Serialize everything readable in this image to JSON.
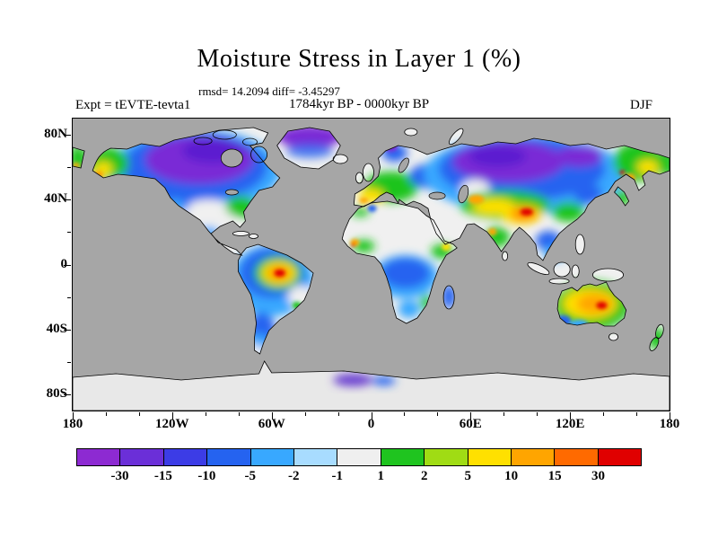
{
  "header": {
    "title": "Moisture Stress in Layer 1 (%)",
    "stats_line": "rmsd= 14.2094 diff= -3.45297",
    "period_line": "1784kyr BP - 0000kyr BP",
    "experiment_label": "Expt = tEVTE-tevta1",
    "season_label": "DJF"
  },
  "chart_data": {
    "type": "heatmap",
    "title": "Moisture Stress in Layer 1 (%)",
    "subtitle": "1784kyr BP - 0000kyr BP",
    "experiment": "tEVTE-tevta1",
    "season": "DJF",
    "units": "%",
    "stats": {
      "rmsd": 14.2094,
      "diff": -3.45297
    },
    "projection": "equirectangular world map",
    "x_axis": {
      "labels": [
        "180",
        "120W",
        "60W",
        "0",
        "60E",
        "120E",
        "180"
      ],
      "positions_deg": [
        -180,
        -120,
        -60,
        0,
        60,
        120,
        180
      ],
      "minor_tick_step_deg": 20,
      "range_deg": [
        -180,
        180
      ]
    },
    "y_axis": {
      "labels": [
        "80N",
        "40N",
        "0",
        "40S",
        "80S"
      ],
      "positions_deg": [
        80,
        40,
        0,
        -40,
        -80
      ],
      "minor_tick_step_deg": 20,
      "range_deg": [
        -90,
        90
      ]
    },
    "colorbar": {
      "labels": [
        "-30",
        "-15",
        "-10",
        "-5",
        "-2",
        "-1",
        "1",
        "2",
        "5",
        "10",
        "15",
        "30"
      ],
      "levels": [
        -30,
        -15,
        -10,
        -5,
        -2,
        -1,
        1,
        2,
        5,
        10,
        15,
        30
      ],
      "colors": [
        "#8d2ad2",
        "#6b2fd8",
        "#3c3ce6",
        "#2563f0",
        "#38a8ff",
        "#a8dcff",
        "#efefef",
        "#1fc41f",
        "#a0dc14",
        "#ffe000",
        "#ffa500",
        "#ff6a00",
        "#e00000"
      ],
      "units": "%"
    },
    "map_colors": {
      "ocean": "#a6a6a6",
      "no_data_land": "#f0f0f0",
      "antarctica": "#e8e8e8"
    },
    "regions": [
      {
        "region": "Canada / Arctic North America",
        "value_pct": "-15 to -30"
      },
      {
        "region": "Alaska",
        "value_pct": "+2 to +15"
      },
      {
        "region": "Western USA",
        "value_pct": "-2 to -10"
      },
      {
        "region": "Eastern USA",
        "value_pct": "+1 to +2"
      },
      {
        "region": "Greenland (north)",
        "value_pct": "-15 to -30"
      },
      {
        "region": "Amazon basin",
        "value_pct": "+10 to +30"
      },
      {
        "region": "Southern South America",
        "value_pct": "-2 to -10"
      },
      {
        "region": "Sahara",
        "value_pct": "-1 to +1"
      },
      {
        "region": "Central Africa",
        "value_pct": "-2 to -10"
      },
      {
        "region": "Western Europe",
        "value_pct": "+1 to +10"
      },
      {
        "region": "Eastern Europe / Scandinavia",
        "value_pct": "-5 to -15"
      },
      {
        "region": "Siberia",
        "value_pct": "-10 to -30"
      },
      {
        "region": "Northeast Siberia",
        "value_pct": "+1 to +15"
      },
      {
        "region": "Central Asia",
        "value_pct": "+2 to +10"
      },
      {
        "region": "Tibetan Plateau",
        "value_pct": "+10 to +30"
      },
      {
        "region": "India",
        "value_pct": "+1 to +15"
      },
      {
        "region": "Southeast Asia",
        "value_pct": "-2 to -10"
      },
      {
        "region": "Australia interior",
        "value_pct": "+5 to +30"
      },
      {
        "region": "Madagascar",
        "value_pct": "-5 to -10"
      },
      {
        "region": "Antarctica",
        "value_pct": "-1 to +1"
      }
    ]
  }
}
